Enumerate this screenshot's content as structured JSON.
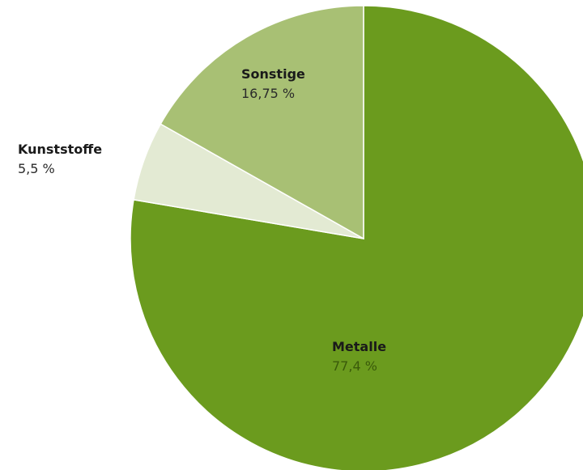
{
  "chart_data": {
    "type": "pie",
    "title": "",
    "slices": [
      {
        "label": "Metalle",
        "value": 77.4,
        "display": "77,4 %",
        "color": "#6b9b1e",
        "value_color": "#3a5a0a"
      },
      {
        "label": "Kunststoffe",
        "value": 5.5,
        "display": "5,5 %",
        "color": "#e3ead3",
        "value_color": "#2a2a2a"
      },
      {
        "label": "Sonstige",
        "value": 16.75,
        "display": "16,75 %",
        "color": "#a8c074",
        "value_color": "#2a2a2a"
      }
    ],
    "start": "12 o'clock",
    "direction": "clockwise",
    "legend": "none"
  }
}
